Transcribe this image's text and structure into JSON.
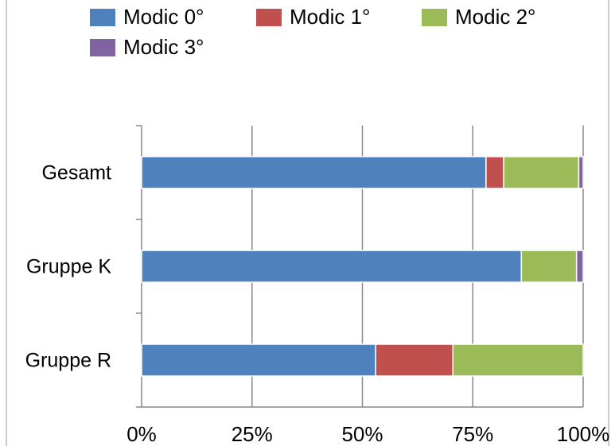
{
  "chart_data": {
    "type": "stacked_bar_horizontal",
    "categories": [
      "Gesamt",
      "Gruppe K",
      "Gruppe R"
    ],
    "series": [
      {
        "name": "Modic 0°",
        "color": "#4f81bd",
        "values": [
          78,
          86,
          53
        ]
      },
      {
        "name": "Modic 1°",
        "color": "#c0504d",
        "values": [
          4,
          0,
          17.5
        ]
      },
      {
        "name": "Modic 2°",
        "color": "#9bbb59",
        "values": [
          17,
          12.5,
          29.5
        ]
      },
      {
        "name": "Modic 3°",
        "color": "#8064a2",
        "values": [
          1,
          1.5,
          0
        ]
      }
    ],
    "xlim": [
      0,
      100
    ],
    "xticks": [
      {
        "value": 0,
        "label": "0%"
      },
      {
        "value": 25,
        "label": "25%"
      },
      {
        "value": 50,
        "label": "50%"
      },
      {
        "value": 75,
        "label": "75%"
      },
      {
        "value": 100,
        "label": "100%"
      }
    ],
    "grid": true,
    "legend": "top"
  }
}
